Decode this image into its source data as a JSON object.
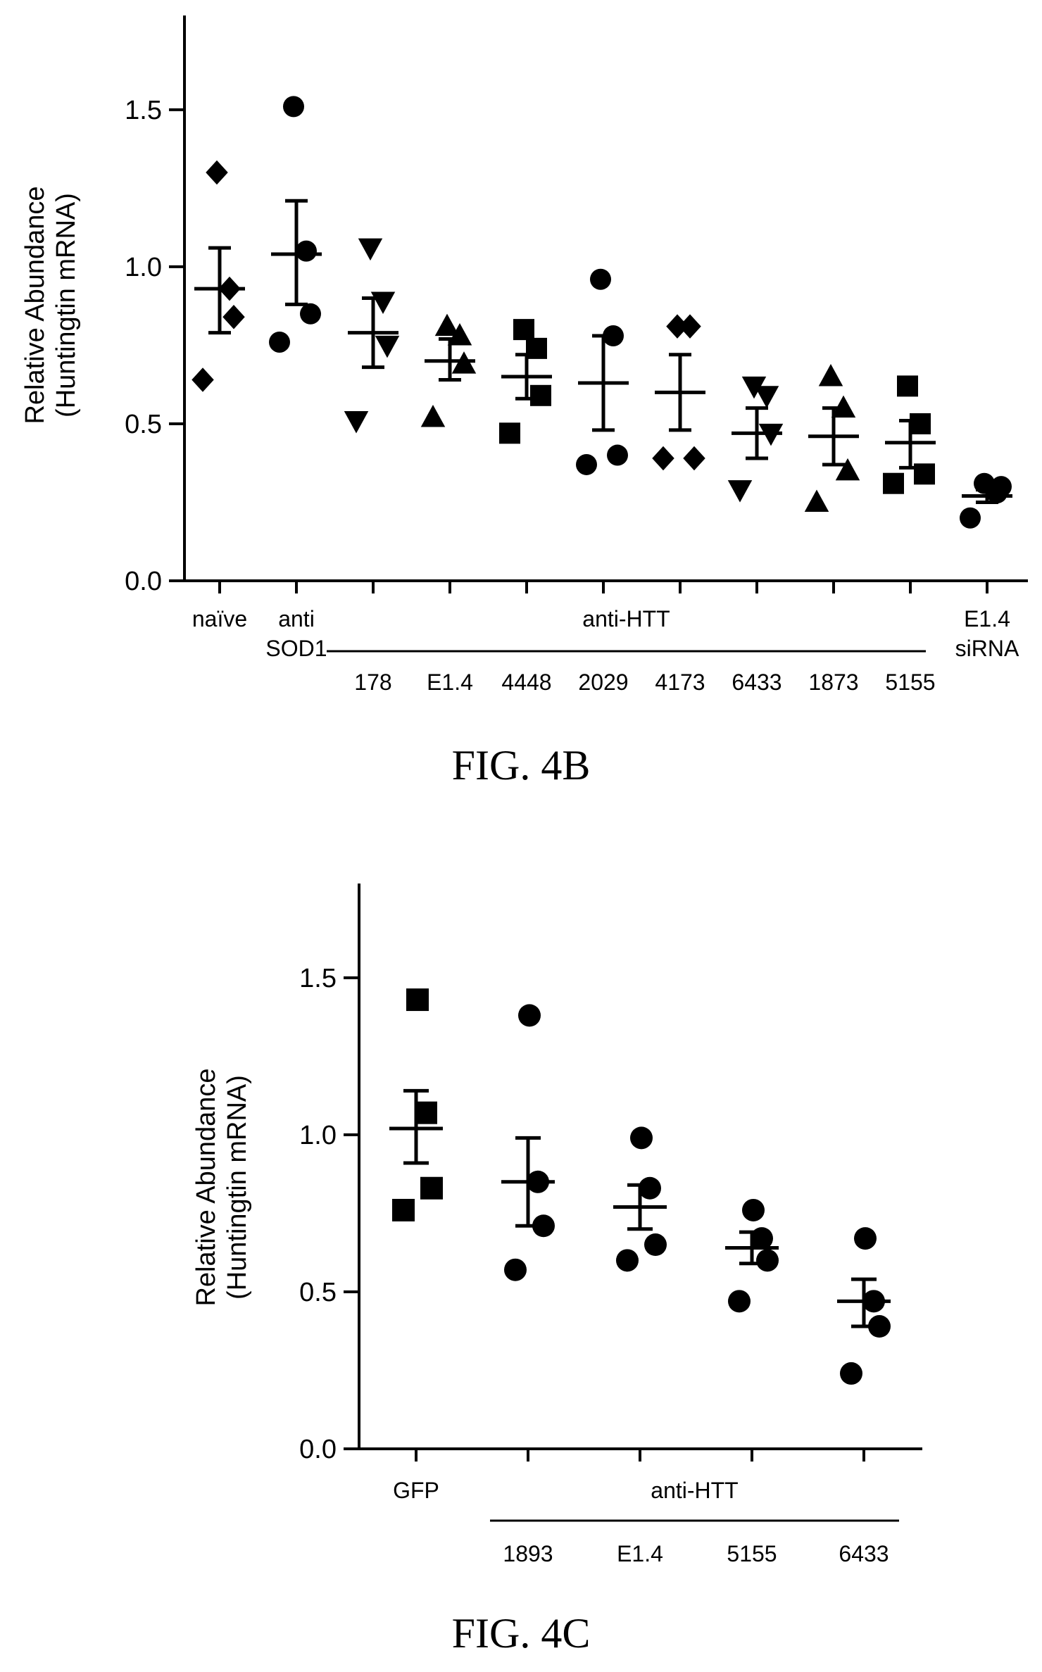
{
  "chart_data": [
    {
      "type": "scatter",
      "caption": "FIG. 4B",
      "ylabel": [
        "Relative Abundance",
        "(Huntingtin mRNA)"
      ],
      "ylim": [
        0,
        1.8
      ],
      "yticks": [
        "0.0",
        "0.5",
        "1.0",
        "1.5"
      ],
      "ytick_values": [
        0,
        0.5,
        1.0,
        1.5
      ],
      "categories": [
        {
          "label": [
            "naïve"
          ],
          "marker": "diamond",
          "points": [
            1.3,
            0.93,
            0.84,
            0.64
          ],
          "mean": 0.93,
          "sem": [
            0.79,
            1.06
          ]
        },
        {
          "label": [
            "anti",
            "SOD1"
          ],
          "marker": "circle",
          "points": [
            1.51,
            1.05,
            0.85,
            0.76
          ],
          "mean": 1.04,
          "sem": [
            0.88,
            1.21
          ]
        },
        {
          "label": [
            "178"
          ],
          "marker": "triangle-down",
          "points": [
            1.06,
            0.89,
            0.75,
            0.51
          ],
          "mean": 0.79,
          "sem": [
            0.68,
            0.9
          ]
        },
        {
          "label": [
            "E1.4"
          ],
          "marker": "triangle-up",
          "points": [
            0.81,
            0.78,
            0.69,
            0.52
          ],
          "mean": 0.7,
          "sem": [
            0.64,
            0.77
          ]
        },
        {
          "label": [
            "4448"
          ],
          "marker": "square",
          "points": [
            0.8,
            0.74,
            0.59,
            0.47
          ],
          "mean": 0.65,
          "sem": [
            0.58,
            0.72
          ]
        },
        {
          "label": [
            "2029"
          ],
          "marker": "circle",
          "points": [
            0.96,
            0.78,
            0.4,
            0.37
          ],
          "mean": 0.63,
          "sem": [
            0.48,
            0.78
          ]
        },
        {
          "label": [
            "4173"
          ],
          "marker": "diamond",
          "points": [
            0.81,
            0.81,
            0.39,
            0.39
          ],
          "mean": 0.6,
          "sem": [
            0.48,
            0.72
          ]
        },
        {
          "label": [
            "6433"
          ],
          "marker": "triangle-down",
          "points": [
            0.62,
            0.59,
            0.47,
            0.29
          ],
          "mean": 0.47,
          "sem": [
            0.39,
            0.55
          ]
        },
        {
          "label": [
            "1873"
          ],
          "marker": "triangle-up",
          "points": [
            0.65,
            0.55,
            0.35,
            0.25
          ],
          "mean": 0.46,
          "sem": [
            0.37,
            0.55
          ]
        },
        {
          "label": [
            "5155"
          ],
          "marker": "square",
          "points": [
            0.62,
            0.5,
            0.34,
            0.31
          ],
          "mean": 0.44,
          "sem": [
            0.36,
            0.51
          ]
        },
        {
          "label": [
            "E1.4",
            "siRNA"
          ],
          "marker": "circle",
          "points": [
            0.31,
            0.28,
            0.3,
            0.2
          ],
          "mean": 0.27,
          "sem": [
            0.25,
            0.29
          ]
        }
      ],
      "group_label": "anti-HTT",
      "group_span": [
        2,
        9
      ]
    },
    {
      "type": "scatter",
      "caption": "FIG. 4C",
      "ylabel": [
        "Relative Abundance",
        "(Huntingtin mRNA)"
      ],
      "ylim": [
        0,
        1.8
      ],
      "yticks": [
        "0.0",
        "0.5",
        "1.0",
        "1.5"
      ],
      "ytick_values": [
        0,
        0.5,
        1.0,
        1.5
      ],
      "categories": [
        {
          "label": [
            "GFP"
          ],
          "marker": "square",
          "points": [
            1.43,
            1.07,
            0.83,
            0.76
          ],
          "mean": 1.02,
          "sem": [
            0.91,
            1.14
          ]
        },
        {
          "label": [
            "1893"
          ],
          "marker": "circle",
          "points": [
            1.38,
            0.85,
            0.71,
            0.57
          ],
          "mean": 0.85,
          "sem": [
            0.71,
            0.99
          ]
        },
        {
          "label": [
            "E1.4"
          ],
          "marker": "circle",
          "points": [
            0.99,
            0.83,
            0.65,
            0.6
          ],
          "mean": 0.77,
          "sem": [
            0.7,
            0.84
          ]
        },
        {
          "label": [
            "5155"
          ],
          "marker": "circle",
          "points": [
            0.76,
            0.67,
            0.6,
            0.47
          ],
          "mean": 0.64,
          "sem": [
            0.59,
            0.69
          ]
        },
        {
          "label": [
            "6433"
          ],
          "marker": "circle",
          "points": [
            0.67,
            0.47,
            0.39,
            0.24
          ],
          "mean": 0.47,
          "sem": [
            0.39,
            0.54
          ]
        }
      ],
      "group_label": "anti-HTT",
      "group_span": [
        1,
        4
      ]
    }
  ]
}
